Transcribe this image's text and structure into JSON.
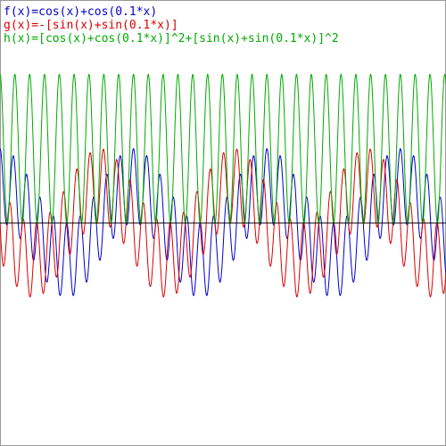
{
  "chart_data": {
    "type": "function",
    "series": [
      {
        "name": "f(x)=cos(x)+cos(0.1*x)",
        "color": "#0000cc"
      },
      {
        "name": "g(x)=-[sin(x)+sin(0.1*x)]",
        "color": "#dd0000"
      },
      {
        "name": "h(x)=[cos(x)+cos(0.1*x)]^2+[sin(x)+sin(0.1*x)]^2",
        "color": "#00aa00"
      }
    ],
    "xlim": [
      0,
      210
    ],
    "ylim": [
      -6,
      6
    ]
  }
}
